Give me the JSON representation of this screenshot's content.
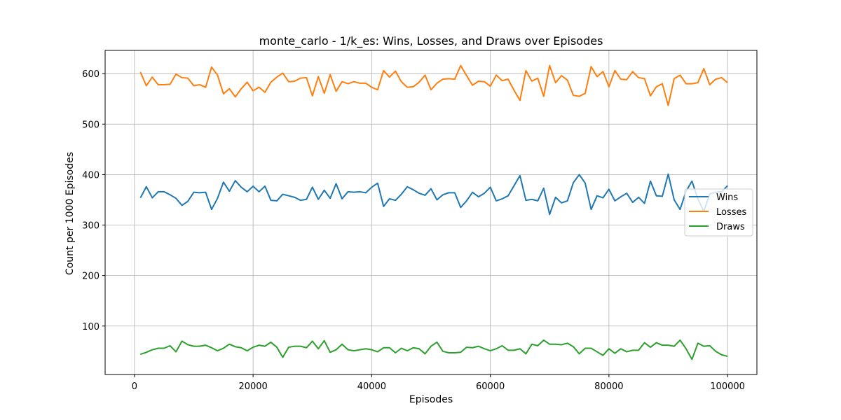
{
  "chart_data": {
    "type": "line",
    "title": "monte_carlo - 1/k_es: Wins, Losses, and Draws over Episodes",
    "xlabel": "Episodes",
    "ylabel": "Count per 1000 Episodes",
    "xlim": [
      -4950,
      104950
    ],
    "ylim": [
      4,
      646
    ],
    "xticks": [
      0,
      20000,
      40000,
      60000,
      80000,
      100000
    ],
    "xtick_labels": [
      "0",
      "20000",
      "40000",
      "60000",
      "80000",
      "100000"
    ],
    "yticks": [
      100,
      200,
      300,
      400,
      500,
      600
    ],
    "ytick_labels": [
      "100",
      "200",
      "300",
      "400",
      "500",
      "600"
    ],
    "grid": true,
    "legend_position": "center-right",
    "x_start": 1000,
    "x_step": 1000,
    "series": [
      {
        "name": "Wins",
        "color": "#1f77b4",
        "values": [
          354,
          376,
          354,
          366,
          366,
          360,
          353,
          339,
          347,
          365,
          364,
          365,
          331,
          353,
          385,
          367,
          388,
          375,
          366,
          377,
          366,
          377,
          349,
          348,
          361,
          358,
          355,
          349,
          351,
          375,
          351,
          369,
          353,
          382,
          352,
          366,
          365,
          366,
          364,
          375,
          383,
          337,
          352,
          349,
          361,
          376,
          370,
          363,
          359,
          372,
          350,
          360,
          364,
          364,
          335,
          348,
          365,
          356,
          363,
          375,
          348,
          352,
          358,
          378,
          398,
          349,
          351,
          348,
          373,
          321,
          355,
          344,
          348,
          384,
          400,
          383,
          331,
          358,
          354,
          371,
          348,
          356,
          363,
          345,
          355,
          343,
          387,
          358,
          357,
          401,
          350,
          331,
          367,
          387,
          352,
          327,
          362,
          365,
          366,
          378
        ]
      },
      {
        "name": "Losses",
        "color": "#ff7f0e",
        "values": [
          603,
          576,
          593,
          578,
          578,
          579,
          599,
          592,
          591,
          576,
          578,
          573,
          613,
          597,
          560,
          570,
          554,
          570,
          583,
          566,
          573,
          563,
          583,
          593,
          601,
          584,
          585,
          591,
          592,
          556,
          594,
          561,
          598,
          565,
          584,
          580,
          584,
          581,
          581,
          573,
          568,
          606,
          593,
          605,
          584,
          573,
          574,
          583,
          597,
          568,
          581,
          589,
          590,
          589,
          616,
          596,
          577,
          585,
          584,
          575,
          597,
          586,
          589,
          567,
          547,
          606,
          585,
          591,
          555,
          616,
          582,
          596,
          587,
          557,
          555,
          561,
          614,
          594,
          604,
          574,
          606,
          589,
          588,
          604,
          592,
          590,
          556,
          574,
          580,
          537,
          590,
          597,
          580,
          580,
          582,
          610,
          578,
          589,
          592,
          582
        ]
      },
      {
        "name": "Draws",
        "color": "#2ca02c",
        "values": [
          44,
          48,
          53,
          56,
          56,
          61,
          49,
          70,
          63,
          60,
          60,
          62,
          57,
          51,
          56,
          64,
          59,
          57,
          51,
          58,
          62,
          60,
          68,
          58,
          38,
          58,
          60,
          60,
          57,
          70,
          55,
          71,
          48,
          53,
          64,
          53,
          51,
          53,
          55,
          53,
          49,
          57,
          57,
          47,
          56,
          51,
          57,
          55,
          45,
          60,
          68,
          50,
          47,
          47,
          48,
          58,
          57,
          60,
          55,
          51,
          55,
          61,
          52,
          52,
          55,
          45,
          64,
          61,
          72,
          64,
          64,
          63,
          66,
          59,
          45,
          56,
          56,
          49,
          42,
          55,
          46,
          55,
          49,
          52,
          52,
          67,
          58,
          67,
          62,
          62,
          60,
          72,
          55,
          34,
          66,
          60,
          61,
          50,
          43,
          40
        ]
      }
    ]
  }
}
